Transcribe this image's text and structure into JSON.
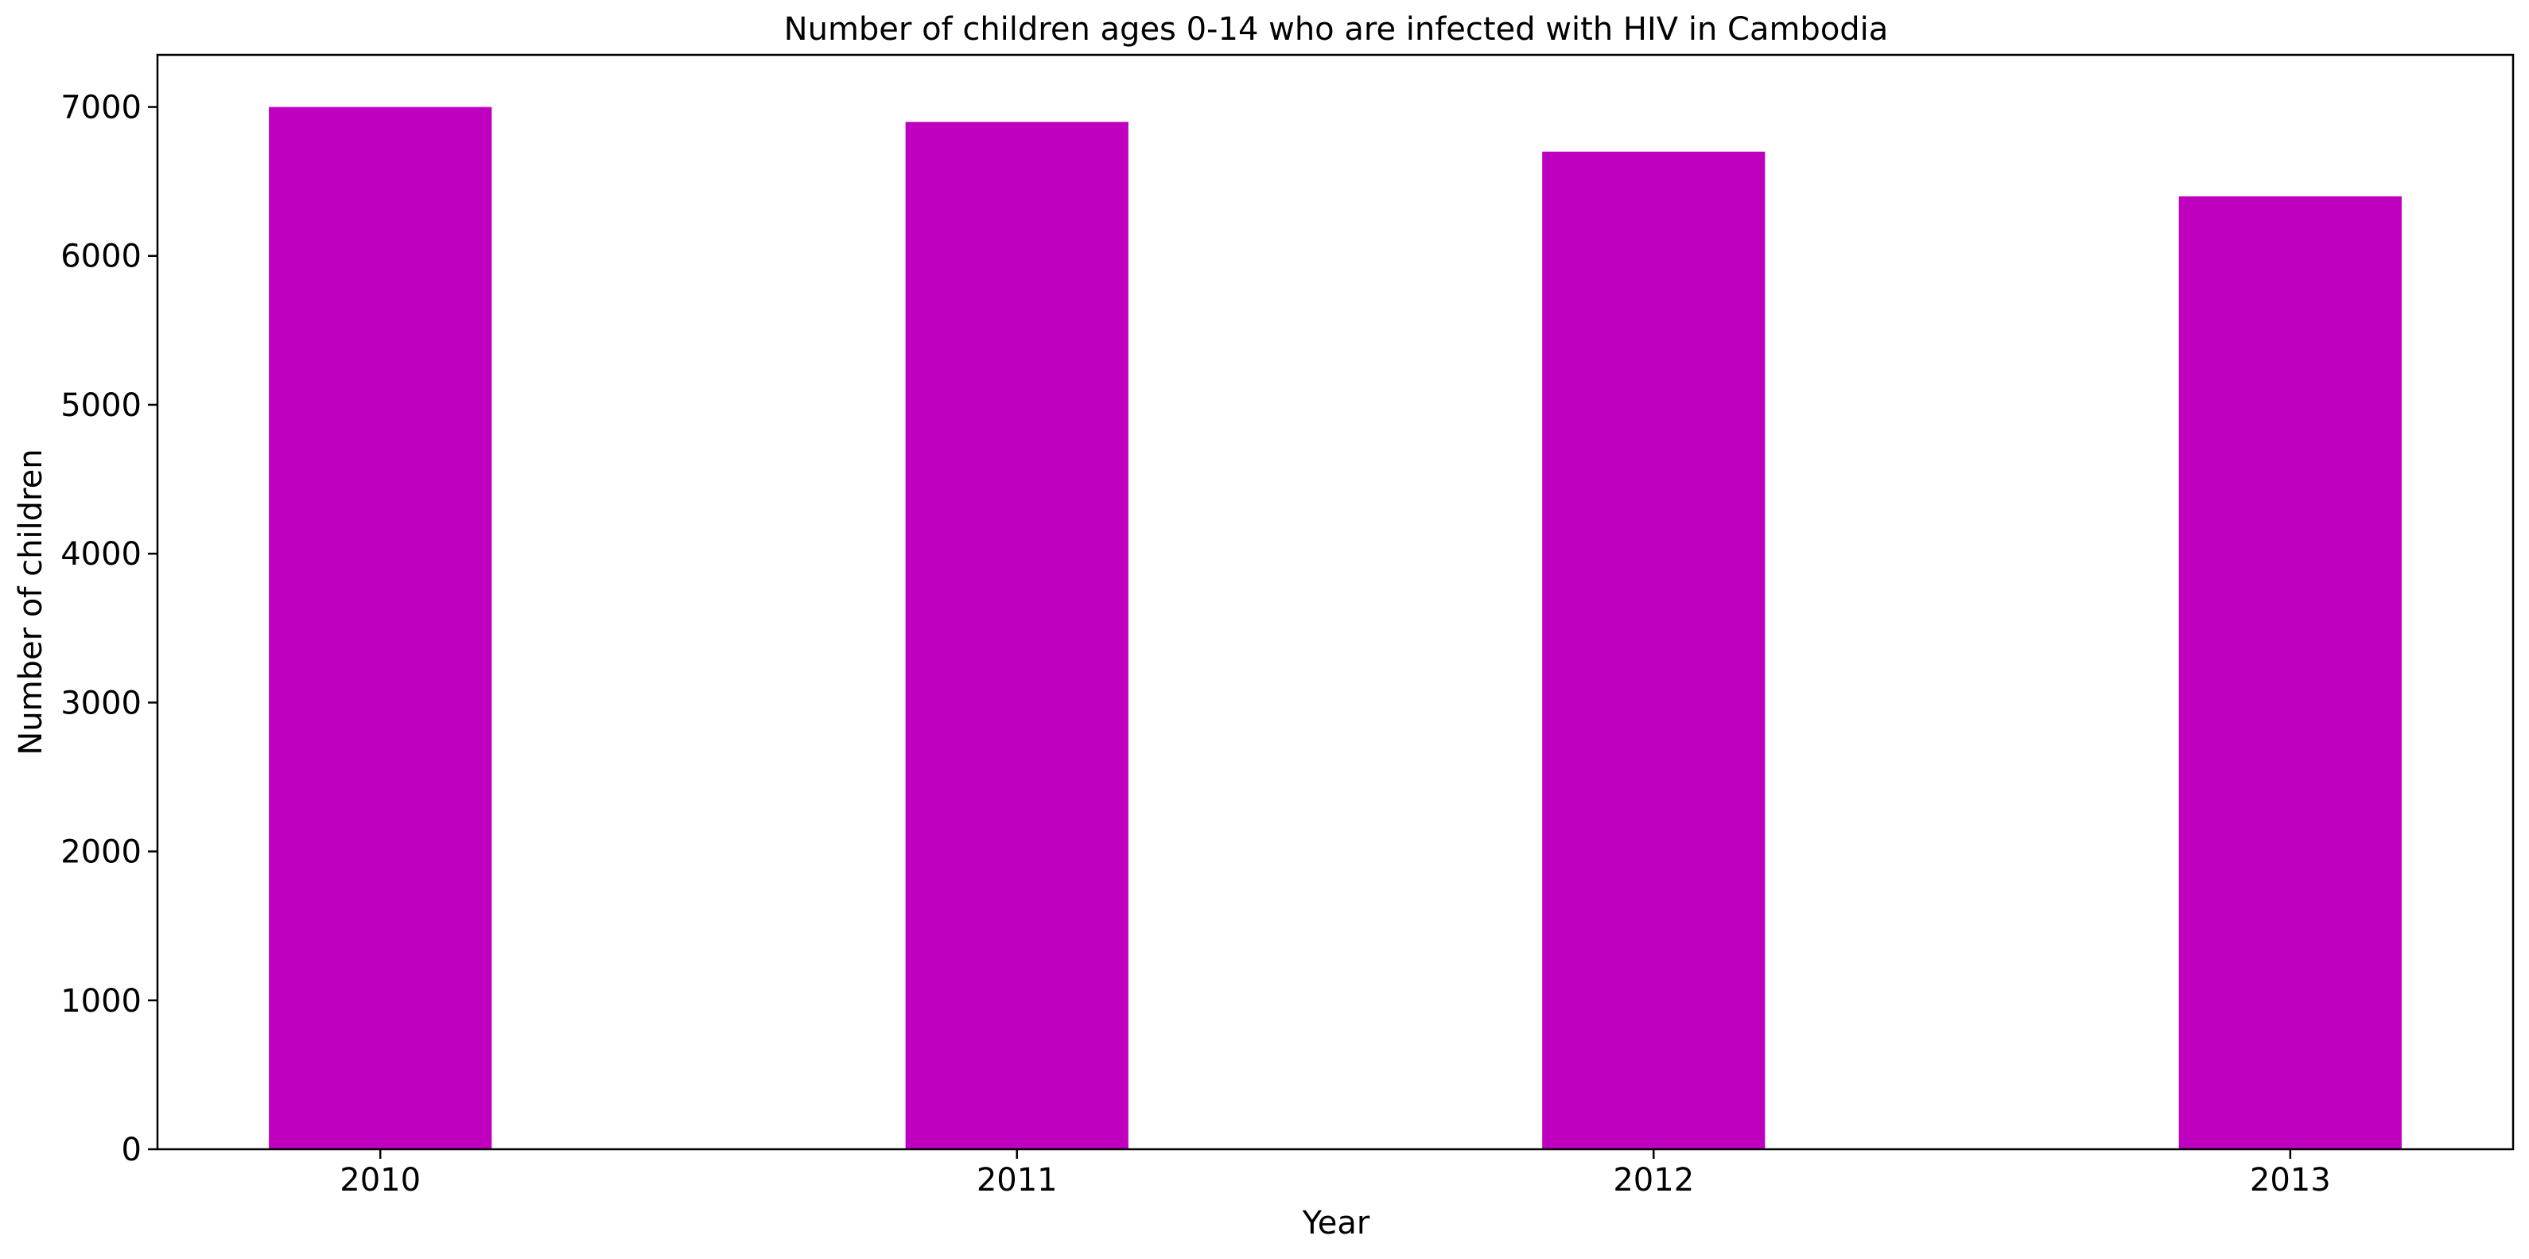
{
  "chart_data": {
    "type": "bar",
    "title": "Number of children ages 0-14 who are infected with HIV in Cambodia",
    "xlabel": "Year",
    "ylabel": "Number of children",
    "categories": [
      "2010",
      "2011",
      "2012",
      "2013"
    ],
    "values": [
      7000,
      6900,
      6700,
      6400
    ],
    "ylim": [
      0,
      7350
    ],
    "yticks": [
      0,
      1000,
      2000,
      3000,
      4000,
      5000,
      6000,
      7000
    ],
    "grid": false,
    "legend": "none",
    "bar_color": "#bf00bf"
  }
}
